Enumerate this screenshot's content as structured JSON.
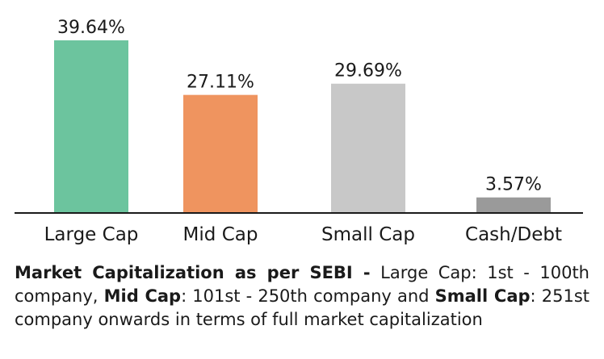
{
  "chart_data": {
    "type": "bar",
    "categories": [
      "Large Cap",
      "Mid Cap",
      "Small Cap",
      "Cash/Debt"
    ],
    "values": [
      39.64,
      27.11,
      29.69,
      3.57
    ],
    "value_labels": [
      "39.64%",
      "27.11%",
      "29.69%",
      "3.57%"
    ],
    "colors": [
      "#6cc49e",
      "#ef945f",
      "#c8c8c8",
      "#9a9a9a"
    ],
    "ylim": [
      0,
      41
    ],
    "grid": false,
    "legend": "none"
  },
  "footnote": {
    "lead": "Market Capitalization as per SEBI -",
    "large_term": "Large Cap",
    "large_def": ": 1st - 100th company,",
    "mid_term": "Mid Cap",
    "mid_def": ": 101st - 250th company and",
    "small_term": "Small Cap",
    "small_def": ": 251st company onwards in terms of full market capitalization"
  }
}
